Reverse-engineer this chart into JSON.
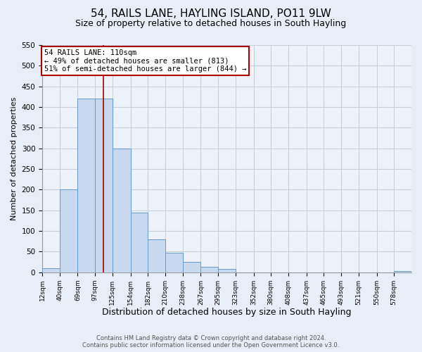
{
  "title": "54, RAILS LANE, HAYLING ISLAND, PO11 9LW",
  "subtitle": "Size of property relative to detached houses in South Hayling",
  "xlabel": "Distribution of detached houses by size in South Hayling",
  "ylabel": "Number of detached properties",
  "bin_labels": [
    "12sqm",
    "40sqm",
    "69sqm",
    "97sqm",
    "125sqm",
    "154sqm",
    "182sqm",
    "210sqm",
    "238sqm",
    "267sqm",
    "295sqm",
    "323sqm",
    "352sqm",
    "380sqm",
    "408sqm",
    "437sqm",
    "465sqm",
    "493sqm",
    "521sqm",
    "550sqm",
    "578sqm"
  ],
  "bin_edges": [
    12,
    40,
    69,
    97,
    125,
    154,
    182,
    210,
    238,
    267,
    295,
    323,
    352,
    380,
    408,
    437,
    465,
    493,
    521,
    550,
    578
  ],
  "bar_heights": [
    10,
    200,
    420,
    420,
    300,
    145,
    80,
    48,
    25,
    13,
    8,
    0,
    0,
    0,
    0,
    0,
    0,
    0,
    0,
    0,
    3
  ],
  "bar_color": "#c8d8ee",
  "bar_edge_color": "#6699cc",
  "vline_x": 110,
  "vline_color": "#aa0000",
  "annotation_line1": "54 RAILS LANE: 110sqm",
  "annotation_line2": "← 49% of detached houses are smaller (813)",
  "annotation_line3": "51% of semi-detached houses are larger (844) →",
  "annotation_box_color": "white",
  "annotation_box_edge_color": "#aa0000",
  "ylim": [
    0,
    550
  ],
  "yticks": [
    0,
    50,
    100,
    150,
    200,
    250,
    300,
    350,
    400,
    450,
    500,
    550
  ],
  "footer_line1": "Contains HM Land Registry data © Crown copyright and database right 2024.",
  "footer_line2": "Contains public sector information licensed under the Open Government Licence v3.0.",
  "title_fontsize": 11,
  "subtitle_fontsize": 9,
  "xlabel_fontsize": 9,
  "ylabel_fontsize": 8,
  "background_color": "#e8eef8",
  "plot_bg_color": "#eef2fa",
  "grid_color": "#c8d0dc"
}
